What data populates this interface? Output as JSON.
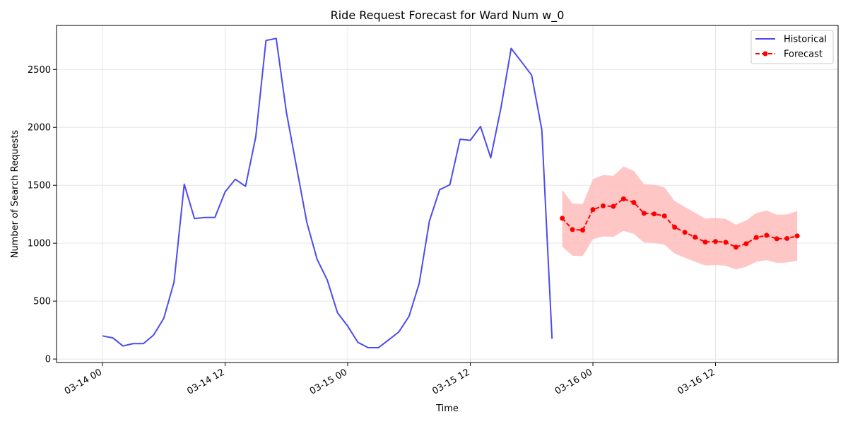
{
  "chart_data": {
    "type": "line",
    "title": "Ride Request Forecast for Ward Num w_0",
    "xlabel": "Time",
    "ylabel": "Number of Search Requests",
    "x_unit": "hours",
    "x_start": "2024-03-14 00:00",
    "xlim": [
      -4.5,
      72.0
    ],
    "ylim": [
      -30,
      2880
    ],
    "grid": true,
    "legend": {
      "placement": "top-right"
    },
    "x_ticks": [
      {
        "value": 0,
        "label": "03-14 00"
      },
      {
        "value": 12,
        "label": "03-14 12"
      },
      {
        "value": 24,
        "label": "03-15 00"
      },
      {
        "value": 36,
        "label": "03-15 12"
      },
      {
        "value": 48,
        "label": "03-16 00"
      },
      {
        "value": 60,
        "label": "03-16 12"
      }
    ],
    "y_ticks": [
      0,
      500,
      1000,
      1500,
      2000,
      2500
    ],
    "series": [
      {
        "name": "Historical",
        "color": "#4b4bf0",
        "style": "solid",
        "x": [
          0,
          1,
          2,
          3,
          4,
          5,
          6,
          7,
          8,
          9,
          10,
          11,
          12,
          13,
          14,
          15,
          16,
          17,
          18,
          19,
          20,
          21,
          22,
          23,
          24,
          25,
          26,
          27,
          28,
          29,
          30,
          31,
          32,
          33,
          34,
          35,
          36,
          37,
          38,
          39,
          40,
          41,
          42,
          43,
          44
        ],
        "y": [
          200,
          183,
          113,
          133,
          133,
          207,
          352,
          664,
          1510,
          1213,
          1222,
          1222,
          1443,
          1552,
          1491,
          1918,
          2750,
          2768,
          2130,
          1653,
          1180,
          862,
          682,
          400,
          284,
          144,
          98,
          98,
          165,
          234,
          368,
          654,
          1193,
          1462,
          1505,
          1898,
          1888,
          2008,
          1737,
          2169,
          2682,
          2567,
          2451,
          1980,
          175
        ]
      },
      {
        "name": "Forecast",
        "color": "#ff0000",
        "style": "dashed",
        "marker": "circle",
        "x": [
          45,
          46,
          47,
          48,
          49,
          50,
          51,
          52,
          53,
          54,
          55,
          56,
          57,
          58,
          59,
          60,
          61,
          62,
          63,
          64,
          65,
          66,
          67,
          68
        ],
        "y": [
          1215,
          1118,
          1113,
          1290,
          1322,
          1318,
          1383,
          1352,
          1258,
          1253,
          1235,
          1138,
          1094,
          1052,
          1010,
          1015,
          1008,
          966,
          996,
          1050,
          1068,
          1038,
          1041,
          1063
        ],
        "interval": {
          "color": "#ffbcbc",
          "lower": [
            970,
            892,
            888,
            1035,
            1059,
            1055,
            1106,
            1081,
            1006,
            1002,
            988,
            910,
            875,
            840,
            808,
            812,
            806,
            773,
            797,
            840,
            854,
            830,
            833,
            850
          ],
          "upper": [
            1460,
            1342,
            1338,
            1552,
            1588,
            1582,
            1662,
            1624,
            1510,
            1504,
            1483,
            1365,
            1313,
            1263,
            1212,
            1218,
            1210,
            1160,
            1196,
            1260,
            1282,
            1246,
            1249,
            1276
          ]
        }
      }
    ]
  }
}
